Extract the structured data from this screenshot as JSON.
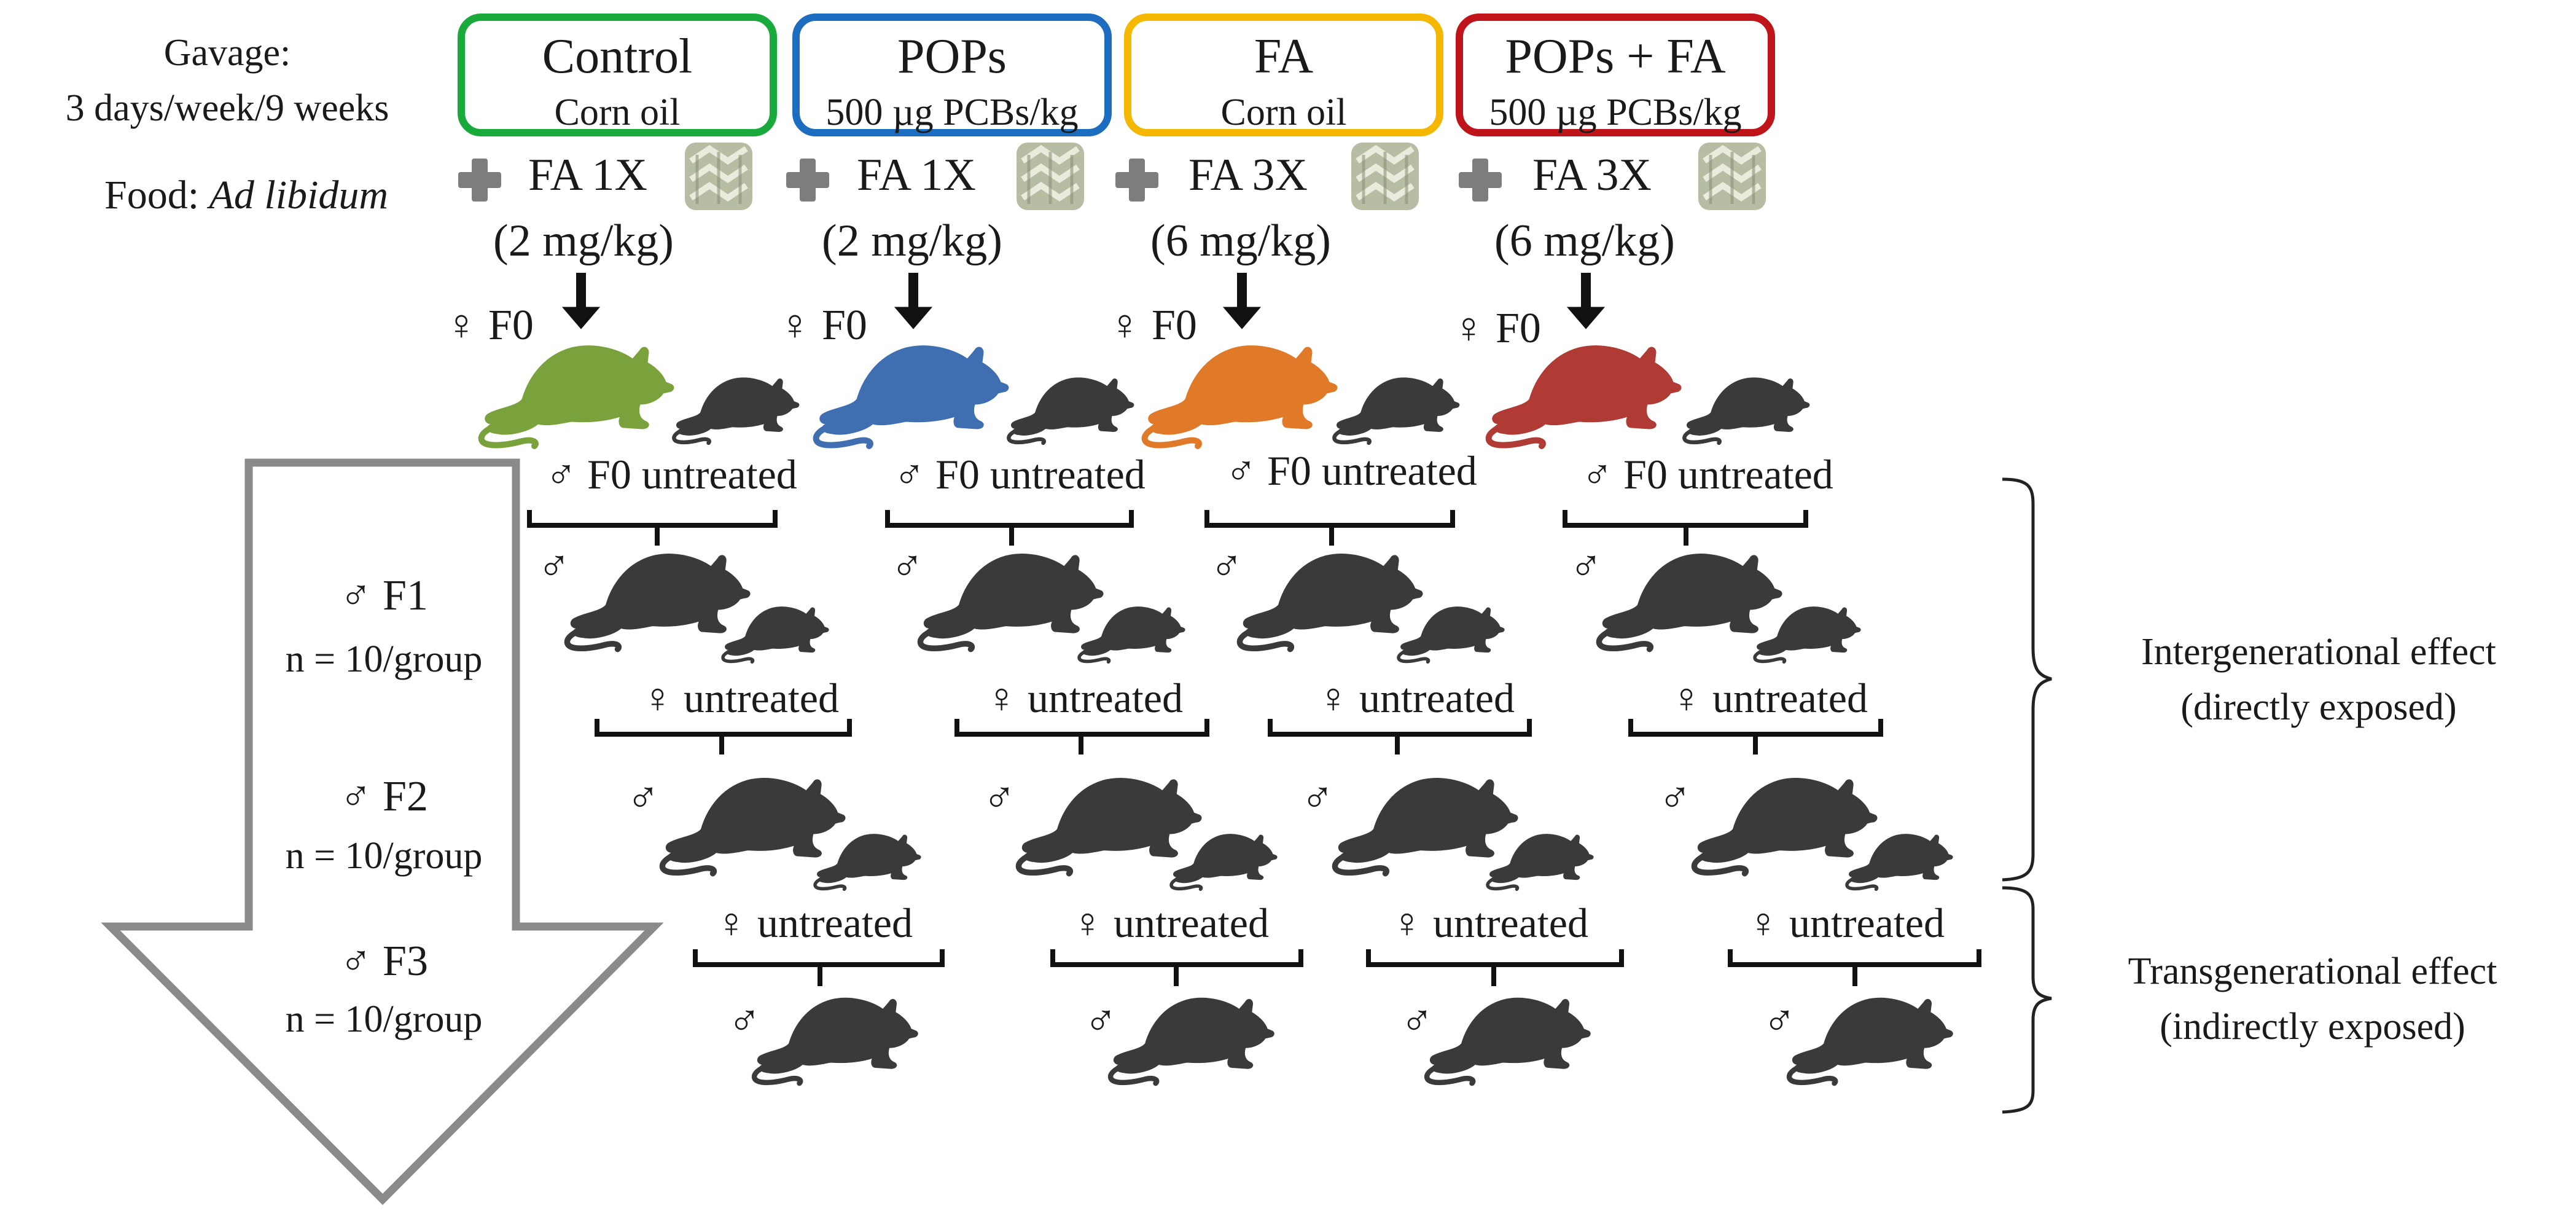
{
  "gavage": {
    "line1": "Gavage:",
    "line2": "3 days/week/9 weeks"
  },
  "food": {
    "label": "Food: ",
    "label_italic": "Ad libidum"
  },
  "colors": {
    "control": "#1aaa3c",
    "pops": "#1c6cbf",
    "fa": "#f5b800",
    "pops_fa": "#c0141b",
    "rat_control": "#7aa23c",
    "rat_pops": "#3f6fb0",
    "rat_fa": "#e07a28",
    "rat_pops_fa": "#b03a34",
    "rat_dark": "#3a3a3a",
    "arrow_gray": "#8a8a8a"
  },
  "groups": [
    {
      "name": "Control",
      "vehicle": "Corn oil",
      "fa_dose": "FA 1X",
      "fa_mgkg": "(2 mg/kg)",
      "f0_female": "♀ F0",
      "f0_male": "♂ F0 untreated"
    },
    {
      "name": "POPs",
      "vehicle": "500 µg PCBs/kg",
      "fa_dose": "FA 1X",
      "fa_mgkg": "(2 mg/kg)",
      "f0_female": "♀ F0",
      "f0_male": "♂ F0 untreated"
    },
    {
      "name": "FA",
      "vehicle": "Corn oil",
      "fa_dose": "FA 3X",
      "fa_mgkg": "(6 mg/kg)",
      "f0_female": "♀ F0",
      "f0_male": "♂ F0 untreated"
    },
    {
      "name": "POPs + FA",
      "vehicle": "500 µg PCBs/kg",
      "fa_dose": "FA 3X",
      "fa_mgkg": "(6 mg/kg)",
      "f0_female": "♀ F0",
      "f0_male": "♂ F0 untreated"
    }
  ],
  "generations": {
    "male_symbol": "♂",
    "female_untreated": "♀ untreated"
  },
  "big_arrow": {
    "f1": "♂ F1",
    "f1_n": "n = 10/group",
    "f2": "♂ F2",
    "f2_n": "n = 10/group",
    "f3": "♂ F3",
    "f3_n": "n = 10/group"
  },
  "effects": {
    "inter_1": "Intergenerational effect",
    "inter_2": "(directly exposed)",
    "trans_1": "Transgenerational effect",
    "trans_2": "(indirectly exposed)"
  }
}
